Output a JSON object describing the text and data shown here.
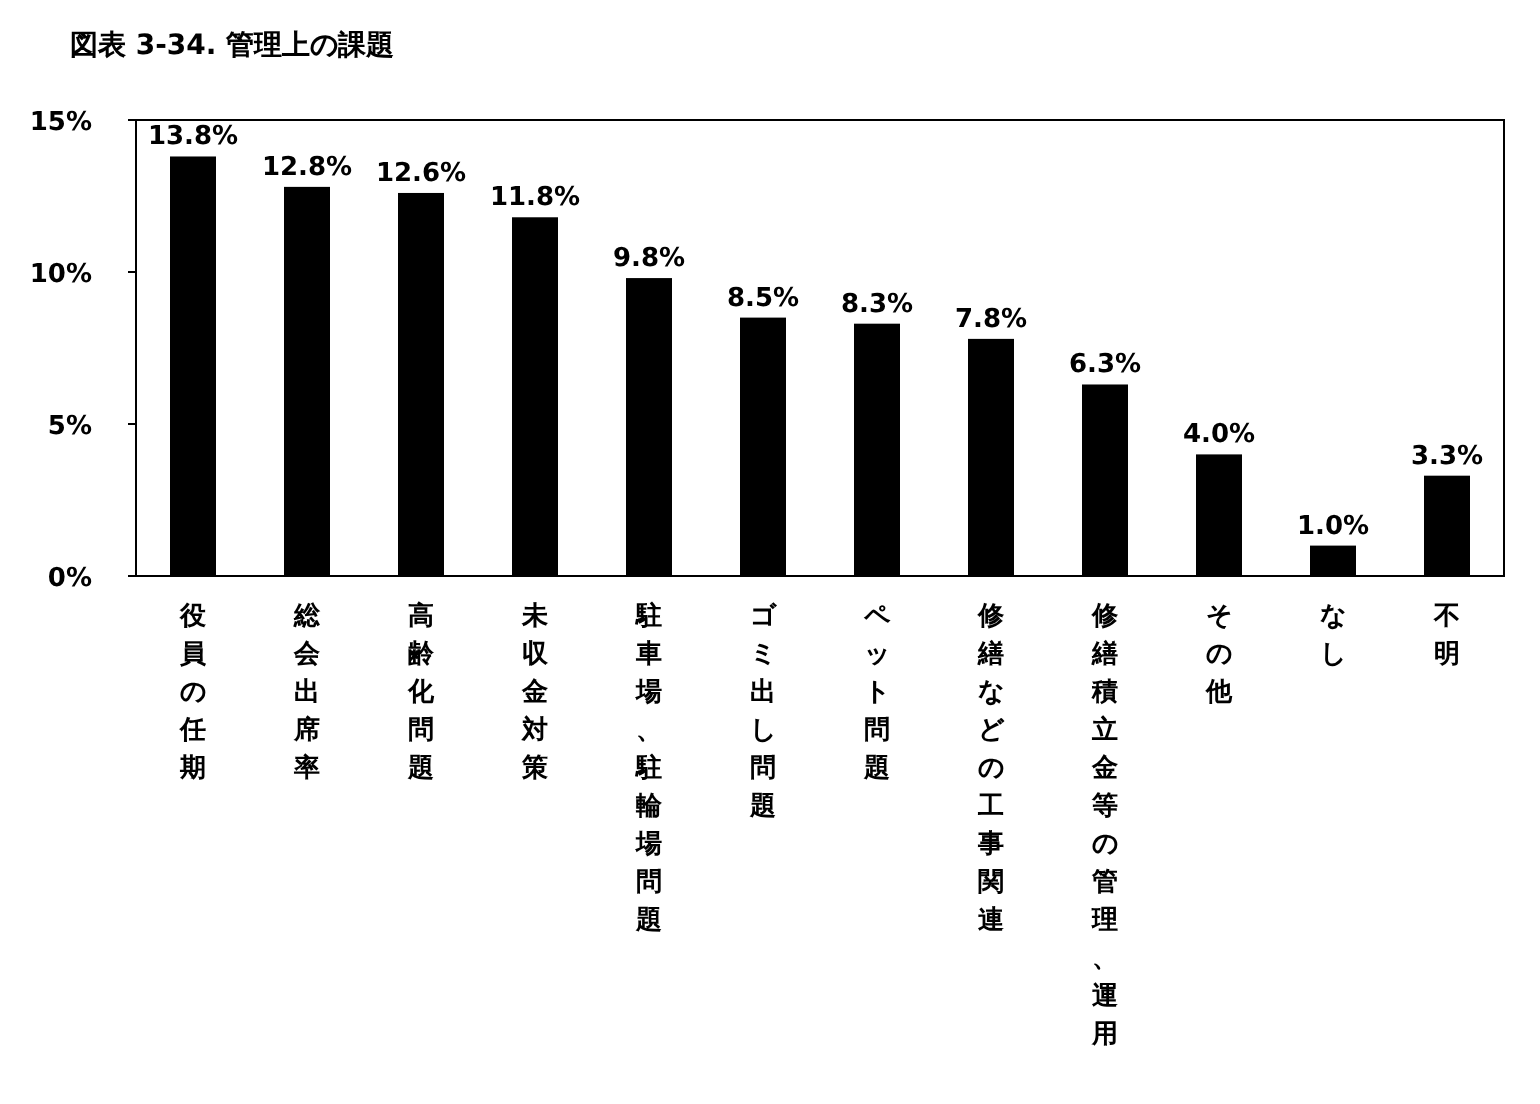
{
  "chart_data": {
    "type": "bar",
    "title": "図表 3-34. 管理上の課題",
    "categories": [
      "役員の任期",
      "総会出席率",
      "高齢化問題",
      "未収金対策",
      "駐車場、駐輪場問題",
      "ゴミ出し問題",
      "ペット問題",
      "修繕などの工事関連",
      "修繕積立金等の管理、運用",
      "その他",
      "なし",
      "不明"
    ],
    "values": [
      13.8,
      12.8,
      12.6,
      11.8,
      9.8,
      8.5,
      8.3,
      7.8,
      6.3,
      4.0,
      1.0,
      3.3
    ],
    "value_labels": [
      "13.8%",
      "12.8%",
      "12.6%",
      "11.8%",
      "9.8%",
      "8.5%",
      "8.3%",
      "7.8%",
      "6.3%",
      "4.0%",
      "1.0%",
      "3.3%"
    ],
    "color": "#000000",
    "ylim": [
      0,
      15
    ],
    "yticks": [
      {
        "value": 0,
        "label": "0%"
      },
      {
        "value": 5,
        "label": "5%"
      },
      {
        "value": 10,
        "label": "10%"
      },
      {
        "value": 15,
        "label": "15%"
      }
    ],
    "grid": false
  }
}
